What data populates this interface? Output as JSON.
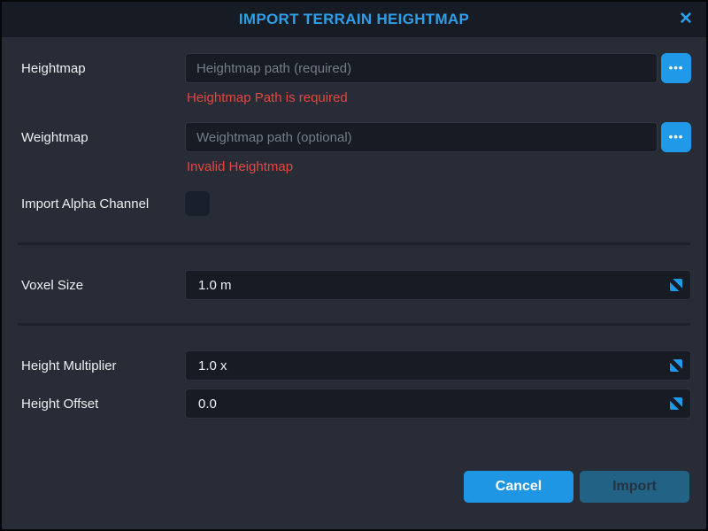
{
  "dialog": {
    "title": "IMPORT TERRAIN HEIGHTMAP",
    "close_glyph": "✕",
    "accent_color": "#1f9ae8",
    "error_color": "#e8453f",
    "background_color": "#272c37",
    "titlebar_color": "#171b24"
  },
  "fields": {
    "heightmap": {
      "label": "Heightmap",
      "value": "",
      "placeholder": "Heightmap path (required)",
      "error": "Heightmap Path is required",
      "browse_glyph": "•••"
    },
    "weightmap": {
      "label": "Weightmap",
      "value": "",
      "placeholder": "Weightmap path (optional)",
      "error": "Invalid Heightmap",
      "browse_glyph": "•••"
    },
    "import_alpha_channel": {
      "label": "Import Alpha Channel",
      "checked": false
    },
    "voxel_size": {
      "label": "Voxel Size",
      "value": "1.0 m"
    },
    "height_multiplier": {
      "label": "Height Multiplier",
      "value": "1.0 x"
    },
    "height_offset": {
      "label": "Height Offset",
      "value": "0.0"
    }
  },
  "buttons": {
    "cancel": "Cancel",
    "import": "Import"
  }
}
